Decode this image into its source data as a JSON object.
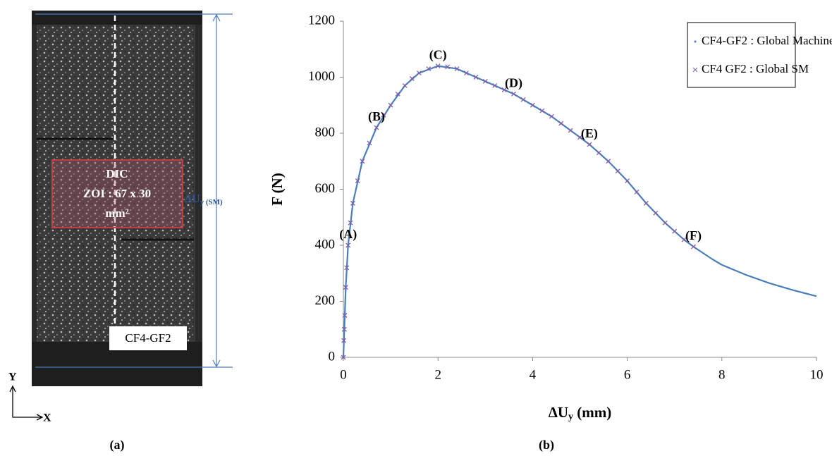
{
  "photo": {
    "zoi_lines": [
      "DIC",
      "ZOI :  67 x 30",
      "mm²"
    ],
    "displacement_label": [
      "ΔU",
      "y (SM)"
    ],
    "specimen": "CF4-GF2",
    "axis_y": "Y",
    "axis_x": "X"
  },
  "panels": [
    "(a)",
    "(b)"
  ],
  "chart_data": {
    "type": "line",
    "xlabel": [
      "ΔU",
      "y",
      " (mm)"
    ],
    "ylabel": "F (N)",
    "xlim": [
      0,
      10
    ],
    "xticks": [
      0,
      2,
      4,
      6,
      8,
      10
    ],
    "ylim": [
      0,
      1200
    ],
    "yticks": [
      0,
      200,
      400,
      600,
      800,
      1000,
      1200
    ],
    "grid": false,
    "legend": "upper right",
    "series": [
      {
        "name": "CF4-GF2 : Global Machine",
        "color": "#4a7ebb",
        "marker": "dot",
        "x": [
          0,
          0.02,
          0.05,
          0.1,
          0.2,
          0.4,
          0.7,
          1.0,
          1.3,
          1.6,
          2.0,
          2.4,
          2.8,
          3.2,
          3.6,
          4.0,
          4.4,
          4.8,
          5.2,
          5.6,
          6.0,
          6.4,
          6.8,
          7.2,
          7.4,
          7.8,
          8.0,
          8.5,
          9.0,
          9.5,
          10.0
        ],
        "values": [
          0,
          100,
          250,
          400,
          550,
          700,
          820,
          900,
          970,
          1015,
          1040,
          1030,
          1000,
          970,
          940,
          900,
          860,
          810,
          760,
          700,
          630,
          550,
          480,
          420,
          395,
          350,
          330,
          295,
          265,
          240,
          218
        ]
      },
      {
        "name": "CF4 GF2 : Global SM",
        "color": "#7f5fa8",
        "marker": "x",
        "x": [
          0,
          0.01,
          0.02,
          0.03,
          0.05,
          0.07,
          0.1,
          0.15,
          0.2,
          0.3,
          0.4,
          0.55,
          0.7,
          0.85,
          1.0,
          1.15,
          1.3,
          1.45,
          1.6,
          1.8,
          2.0,
          2.2,
          2.4,
          2.6,
          2.8,
          3.0,
          3.2,
          3.4,
          3.6,
          3.8,
          4.0,
          4.2,
          4.4,
          4.6,
          4.8,
          5.0,
          5.2,
          5.4,
          5.6,
          5.8,
          6.0,
          6.2,
          6.4,
          6.6,
          6.8,
          7.0,
          7.2,
          7.4
        ],
        "values": [
          0,
          60,
          100,
          150,
          250,
          320,
          400,
          480,
          550,
          630,
          700,
          765,
          820,
          865,
          900,
          940,
          970,
          995,
          1015,
          1030,
          1040,
          1037,
          1030,
          1015,
          1000,
          985,
          970,
          955,
          940,
          920,
          900,
          880,
          860,
          835,
          810,
          785,
          760,
          730,
          700,
          665,
          630,
          590,
          550,
          515,
          480,
          450,
          420,
          395
        ]
      }
    ],
    "annotations": [
      {
        "text": "(A)",
        "x": 0.1,
        "y": 400
      },
      {
        "text": "(B)",
        "x": 0.7,
        "y": 820
      },
      {
        "text": "(C)",
        "x": 2.0,
        "y": 1040
      },
      {
        "text": "(D)",
        "x": 3.6,
        "y": 940
      },
      {
        "text": "(E)",
        "x": 5.2,
        "y": 760
      },
      {
        "text": "(F)",
        "x": 7.4,
        "y": 395
      }
    ]
  }
}
